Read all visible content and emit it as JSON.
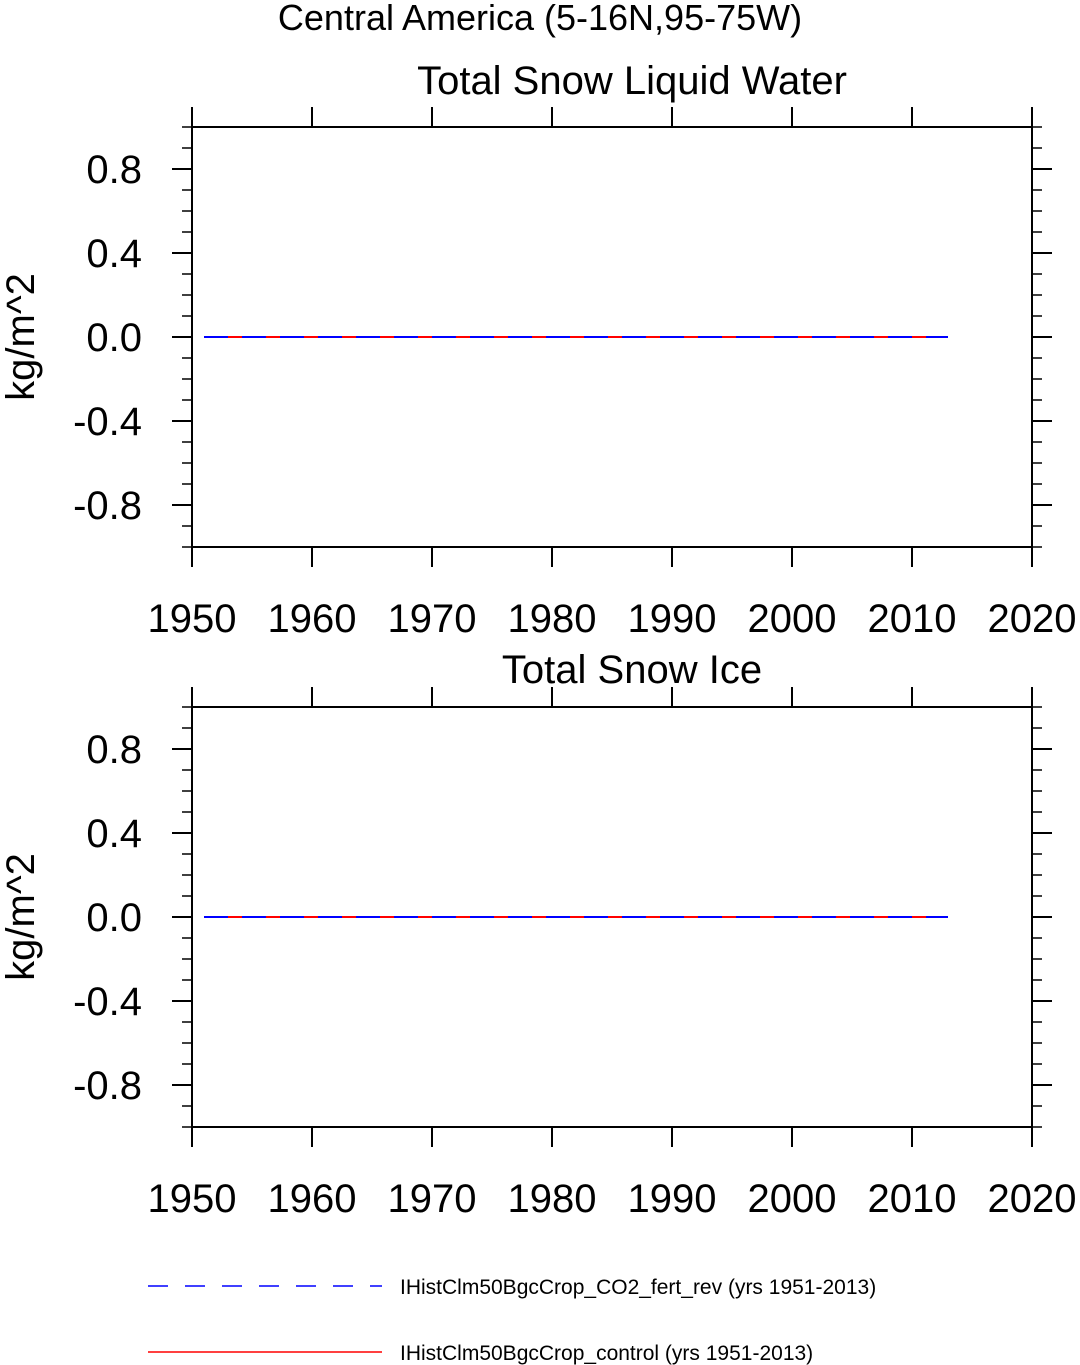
{
  "figure": {
    "suptitle": "Central America (5-16N,95-75W)"
  },
  "legend": {
    "placement": "bottom",
    "items": [
      {
        "label": "IHistClm50BgcCrop_CO2_fert_rev (yrs 1951-2013)",
        "color": "#0000ff",
        "style": "dashed"
      },
      {
        "label": "IHistClm50BgcCrop_control (yrs 1951-2013)",
        "color": "#ff0000",
        "style": "solid"
      }
    ]
  },
  "chart_data": [
    {
      "type": "line",
      "title": "Total Snow Liquid Water",
      "xlabel": "",
      "ylabel": "kg/m^2",
      "xlim": [
        1950,
        2020
      ],
      "ylim": [
        -1.0,
        1.0
      ],
      "xticks": [
        1950,
        1960,
        1970,
        1980,
        1990,
        2000,
        2010,
        2020
      ],
      "yticks": [
        -0.8,
        -0.4,
        0.0,
        0.4,
        0.8
      ],
      "ytick_labels": [
        "-0.8",
        "-0.4",
        "0.0",
        "0.4",
        "0.8"
      ],
      "grid": false,
      "series": [
        {
          "name": "IHistClm50BgcCrop_control (yrs 1951-2013)",
          "color": "#ff0000",
          "style": "solid",
          "x": [
            1951,
            2013
          ],
          "y": [
            0.0,
            0.0
          ]
        },
        {
          "name": "IHistClm50BgcCrop_CO2_fert_rev (yrs 1951-2013)",
          "color": "#0000ff",
          "style": "dashed",
          "x": [
            1951,
            2013
          ],
          "y": [
            0.0,
            0.0
          ]
        }
      ]
    },
    {
      "type": "line",
      "title": "Total Snow Ice",
      "xlabel": "",
      "ylabel": "kg/m^2",
      "xlim": [
        1950,
        2020
      ],
      "ylim": [
        -1.0,
        1.0
      ],
      "xticks": [
        1950,
        1960,
        1970,
        1980,
        1990,
        2000,
        2010,
        2020
      ],
      "yticks": [
        -0.8,
        -0.4,
        0.0,
        0.4,
        0.8
      ],
      "ytick_labels": [
        "-0.8",
        "-0.4",
        "0.0",
        "0.4",
        "0.8"
      ],
      "grid": false,
      "series": [
        {
          "name": "IHistClm50BgcCrop_control (yrs 1951-2013)",
          "color": "#ff0000",
          "style": "solid",
          "x": [
            1951,
            2013
          ],
          "y": [
            0.0,
            0.0
          ]
        },
        {
          "name": "IHistClm50BgcCrop_CO2_fert_rev (yrs 1951-2013)",
          "color": "#0000ff",
          "style": "dashed",
          "x": [
            1951,
            2013
          ],
          "y": [
            0.0,
            0.0
          ]
        }
      ]
    }
  ]
}
